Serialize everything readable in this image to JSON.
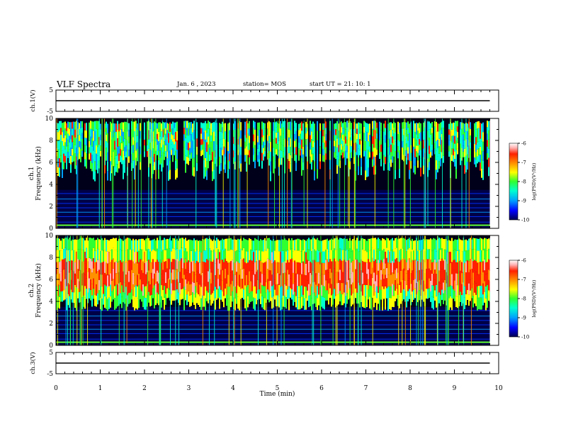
{
  "header": {
    "title": "VLF Spectra",
    "date": "Jan. 6  , 2023",
    "station": "station= MOS",
    "start": "start  UT  =   21: 10: 1"
  },
  "chart_data": [
    {
      "type": "line",
      "panel": "ch1-waveform",
      "ylabel": "ch.1(V)",
      "ylim": [
        -5,
        5
      ],
      "yticks": [
        "5",
        "-5"
      ],
      "xlim": [
        0,
        10
      ],
      "series": [
        {
          "x": [
            0,
            9.8
          ],
          "y": [
            0,
            0
          ]
        }
      ]
    },
    {
      "type": "heatmap",
      "panel": "ch1-spectrogram",
      "ylabel_top": "ch.1",
      "ylabel": "Frequency  (kHz)",
      "ylim": [
        0,
        10
      ],
      "yticks": [
        "0",
        "2",
        "4",
        "6",
        "8",
        "10"
      ],
      "xlim": [
        0,
        10
      ],
      "data_end_min": 9.8,
      "emission_band_khz": [
        5.0,
        9.8
      ],
      "emission_intensity": "medium",
      "colorbar": {
        "label": "log(PSD)(V²/Hz)",
        "range": [
          -10,
          -6
        ],
        "ticks": [
          "-6",
          "-7",
          "-8",
          "-9",
          "-10"
        ]
      }
    },
    {
      "type": "heatmap",
      "panel": "ch2-spectrogram",
      "ylabel_top": "ch.2",
      "ylabel": "Frequency  (kHz)",
      "ylim": [
        0,
        10
      ],
      "yticks": [
        "0",
        "2",
        "4",
        "6",
        "8",
        "10"
      ],
      "xlim": [
        0,
        10
      ],
      "data_end_min": 9.8,
      "emission_band_khz": [
        3.5,
        9.8
      ],
      "emission_core_khz": [
        5.0,
        8.0
      ],
      "emission_intensity": "high",
      "colorbar": {
        "label": "log(PSD)(V²/Hz)",
        "range": [
          -10,
          -6
        ],
        "ticks": [
          "-6",
          "-7",
          "-8",
          "-9",
          "-10"
        ]
      }
    },
    {
      "type": "line",
      "panel": "ch3-waveform",
      "ylabel": "ch.3(V)",
      "ylim": [
        -5,
        5
      ],
      "yticks": [
        "5",
        "-5"
      ],
      "xlim": [
        0,
        10
      ],
      "xlabel": "Time  (min)",
      "xticks": [
        "0",
        "1",
        "2",
        "3",
        "4",
        "5",
        "6",
        "7",
        "8",
        "9",
        "10"
      ],
      "series": [
        {
          "x": [
            0,
            9.8
          ],
          "y": [
            0,
            0
          ]
        }
      ]
    }
  ],
  "colors": {
    "colormap": [
      "#000050",
      "#0000ff",
      "#00a0ff",
      "#00ffd0",
      "#30ff30",
      "#ffff00",
      "#ff9000",
      "#ff2000",
      "#ffb0b0",
      "#ffffff"
    ]
  }
}
